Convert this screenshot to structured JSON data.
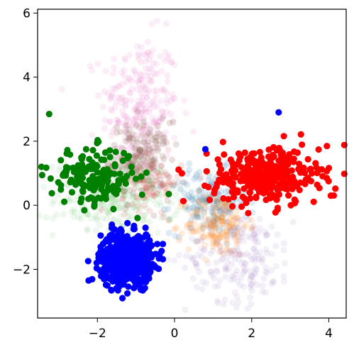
{
  "chart_data": {
    "type": "scatter",
    "title": "",
    "xlabel": "",
    "ylabel": "",
    "xlim": [
      -3.55,
      4.45
    ],
    "ylim": [
      -3.52,
      6.12
    ],
    "grid": false,
    "x_ticks": [
      -2,
      0,
      2,
      4
    ],
    "y_ticks": [
      -2,
      0,
      2,
      4,
      6
    ],
    "x_tick_labels": [
      "−2",
      "0",
      "2",
      "4"
    ],
    "y_tick_labels": [
      "−2",
      "0",
      "2",
      "4",
      "6"
    ],
    "series": [
      {
        "color": "#e377c2",
        "opacity": 0.12,
        "style": "faint",
        "center": [
          -0.9,
          3.1
        ],
        "spread": [
          0.5,
          1.1
        ],
        "count": 260
      },
      {
        "color": "#8c564b",
        "opacity": 0.18,
        "style": "faint",
        "center": [
          -0.9,
          1.4
        ],
        "spread": [
          0.4,
          0.6
        ],
        "count": 200
      },
      {
        "color": "#2ca02c",
        "opacity": 0.08,
        "style": "faint",
        "center": [
          -1.5,
          0.2
        ],
        "spread": [
          0.8,
          0.6
        ],
        "count": 260
      },
      {
        "color": "#1f77b4",
        "opacity": 0.15,
        "style": "faint",
        "center": [
          0.9,
          0.1
        ],
        "spread": [
          0.5,
          0.5
        ],
        "count": 160
      },
      {
        "color": "#ff7f0e",
        "opacity": 0.15,
        "style": "faint",
        "center": [
          1.1,
          -0.6
        ],
        "spread": [
          0.4,
          0.5
        ],
        "count": 160
      },
      {
        "color": "#9467bd",
        "opacity": 0.1,
        "style": "faint",
        "center": [
          1.7,
          -1.6
        ],
        "spread": [
          0.7,
          0.7
        ],
        "count": 200
      },
      {
        "color": "#d62728",
        "opacity": 0.12,
        "style": "faint",
        "center": [
          -0.6,
          0.7
        ],
        "spread": [
          0.4,
          0.4
        ],
        "count": 80
      },
      {
        "color": "#008000",
        "opacity": 1.0,
        "style": "solid",
        "center": [
          -2.1,
          0.9
        ],
        "spread": [
          0.55,
          0.45
        ],
        "count": 170
      },
      {
        "color": "#0000ff",
        "opacity": 1.0,
        "style": "solid",
        "center": [
          -1.25,
          -1.65
        ],
        "spread": [
          0.33,
          0.38
        ],
        "count": 700
      },
      {
        "color": "#ff0000",
        "opacity": 1.0,
        "style": "solid",
        "center": [
          2.35,
          0.9
        ],
        "spread": [
          0.7,
          0.45
        ],
        "count": 320
      }
    ],
    "outliers": [
      {
        "x": -3.25,
        "y": 2.85,
        "color": "#008000"
      },
      {
        "x": -3.45,
        "y": 1.2,
        "color": "#008000"
      },
      {
        "x": -0.15,
        "y": 0.35,
        "color": "#008000"
      },
      {
        "x": 0.8,
        "y": 1.75,
        "color": "#0000ff"
      },
      {
        "x": 2.7,
        "y": 2.9,
        "color": "#0000ff"
      },
      {
        "x": -1.35,
        "y": -2.9,
        "color": "#0000ff"
      },
      {
        "x": 4.05,
        "y": 0.3,
        "color": "#ff0000"
      },
      {
        "x": 3.95,
        "y": 1.85,
        "color": "#ff0000"
      }
    ]
  }
}
